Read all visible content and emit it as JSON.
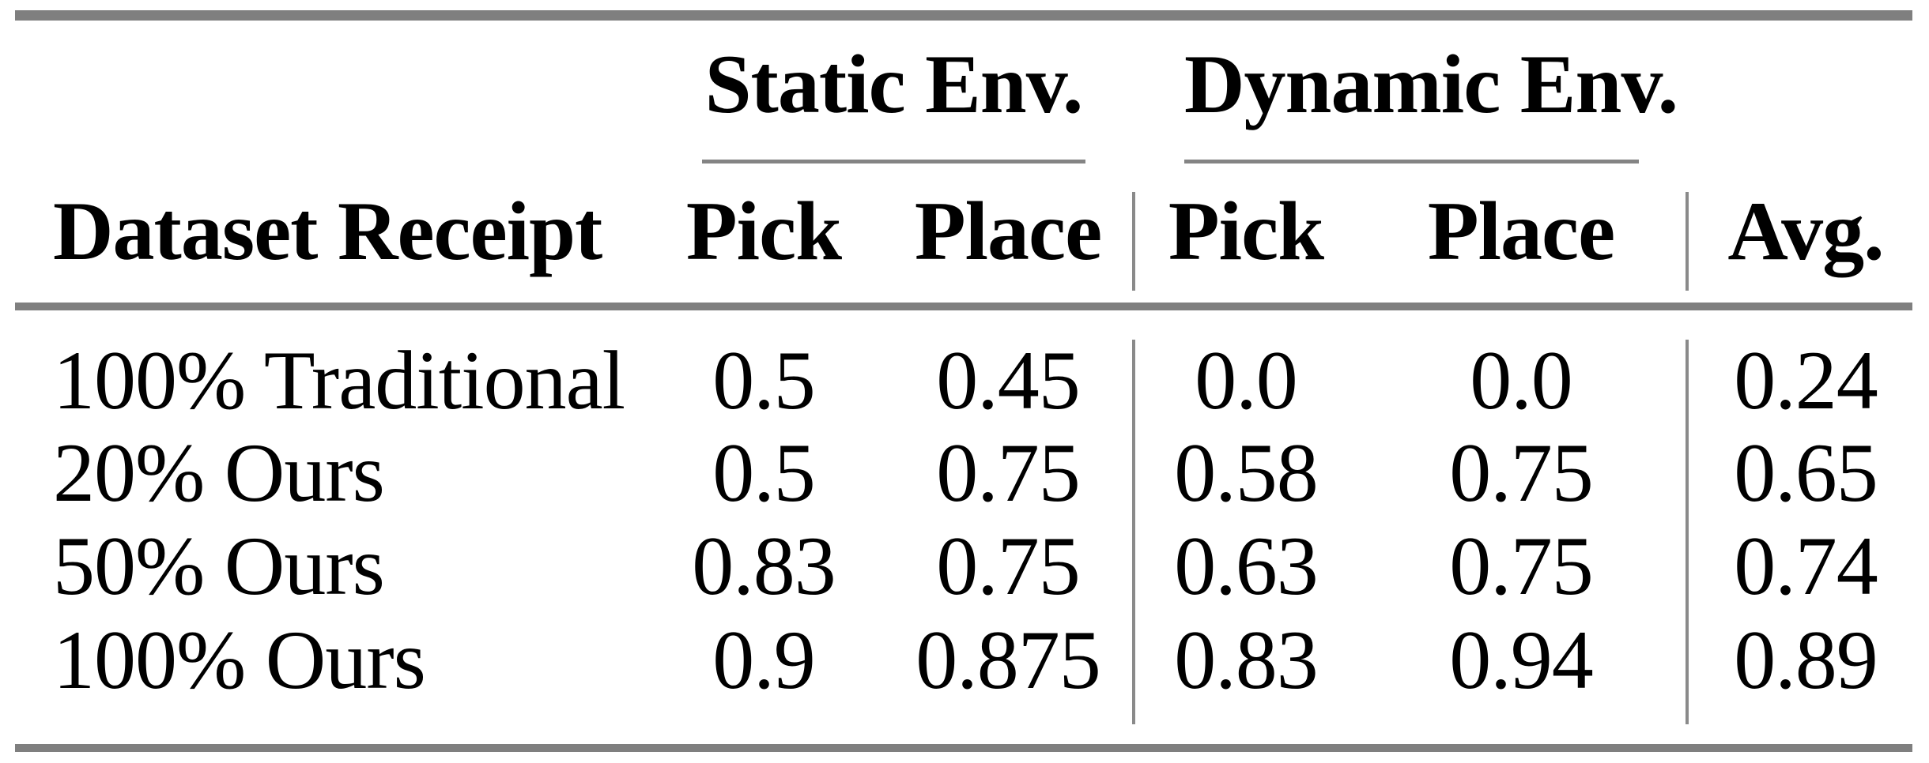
{
  "table": {
    "group_headers": {
      "static": "Static Env.",
      "dynamic": "Dynamic Env."
    },
    "columns": {
      "stub": "Dataset Receipt",
      "static_pick": "Pick",
      "static_place": "Place",
      "dynamic_pick": "Pick",
      "dynamic_place": "Place",
      "avg": "Avg."
    },
    "rows": [
      {
        "label": "100% Traditional",
        "static_pick": "0.5",
        "static_place": "0.45",
        "dynamic_pick": "0.0",
        "dynamic_place": "0.0",
        "avg": "0.24"
      },
      {
        "label": "20% Ours",
        "static_pick": "0.5",
        "static_place": "0.75",
        "dynamic_pick": "0.58",
        "dynamic_place": "0.75",
        "avg": "0.65"
      },
      {
        "label": "50% Ours",
        "static_pick": "0.83",
        "static_place": "0.75",
        "dynamic_pick": "0.63",
        "dynamic_place": "0.75",
        "avg": "0.74"
      },
      {
        "label": "100% Ours",
        "static_pick": "0.9",
        "static_place": "0.875",
        "dynamic_pick": "0.83",
        "dynamic_place": "0.94",
        "avg": "0.89"
      }
    ],
    "colors": {
      "thick_rule": "#7f7f7f",
      "thin_rule": "#848484",
      "text": "#000000",
      "background": "#ffffff"
    }
  }
}
